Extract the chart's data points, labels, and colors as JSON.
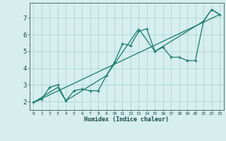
{
  "title": "",
  "xlabel": "Humidex (Indice chaleur)",
  "ylabel": "",
  "xlim": [
    -0.5,
    23.5
  ],
  "ylim": [
    1.5,
    7.9
  ],
  "xticks": [
    0,
    1,
    2,
    3,
    4,
    5,
    6,
    7,
    8,
    9,
    10,
    11,
    12,
    13,
    14,
    15,
    16,
    17,
    18,
    19,
    20,
    21,
    22,
    23
  ],
  "yticks": [
    2,
    3,
    4,
    5,
    6,
    7
  ],
  "bg_color": "#d6eeee",
  "grid_color": "#afd4d4",
  "line_color": "#1a7a6e",
  "series": [
    {
      "x": [
        0,
        1,
        2,
        3,
        4,
        5,
        6,
        7,
        8,
        9,
        10,
        11,
        12,
        13,
        14,
        15,
        16,
        17,
        18,
        19,
        20,
        21,
        22,
        23
      ],
      "y": [
        1.95,
        2.15,
        2.85,
        3.0,
        2.05,
        2.65,
        2.75,
        2.65,
        2.65,
        3.55,
        4.35,
        5.45,
        5.35,
        6.2,
        6.35,
        5.0,
        5.25,
        4.65,
        4.65,
        4.45,
        4.45,
        6.8,
        7.5,
        7.2
      ],
      "marker": true
    },
    {
      "x": [
        0,
        3,
        4,
        9,
        13,
        15,
        21,
        22,
        23
      ],
      "y": [
        1.95,
        2.85,
        2.05,
        3.55,
        6.35,
        5.0,
        6.8,
        7.5,
        7.2
      ],
      "marker": false
    },
    {
      "x": [
        0,
        23
      ],
      "y": [
        1.95,
        7.2
      ],
      "marker": false
    }
  ]
}
